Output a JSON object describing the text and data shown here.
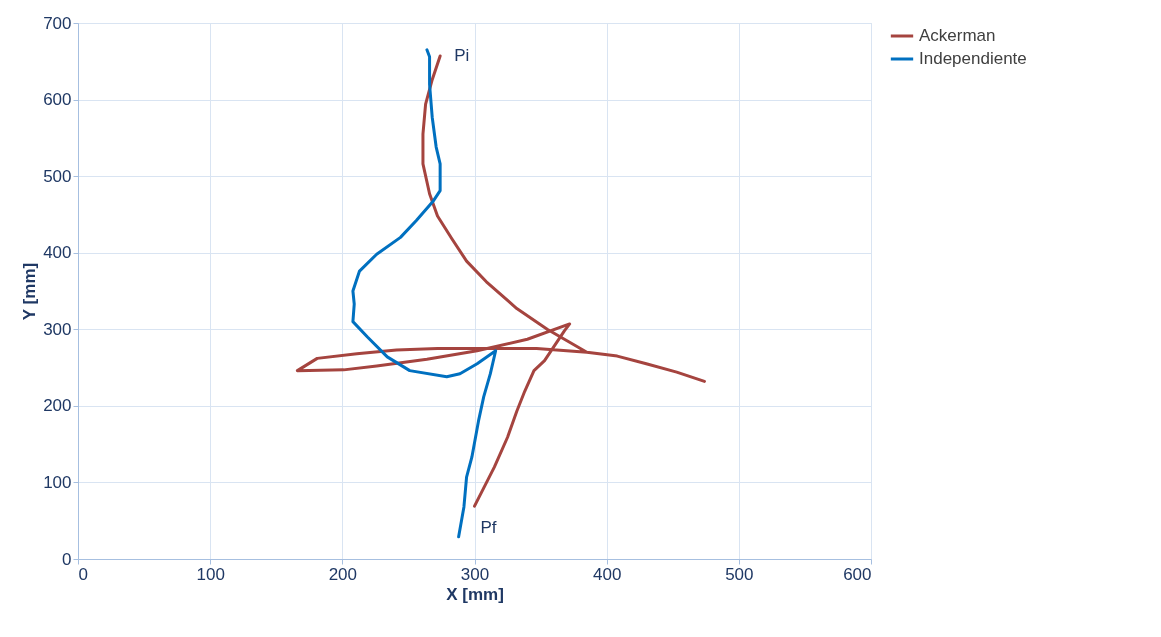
{
  "chart_data": {
    "type": "line",
    "xlabel": "X [mm]",
    "ylabel": "Y [mm]",
    "xlim": [
      0,
      600
    ],
    "ylim": [
      0,
      700
    ],
    "xticks": [
      0,
      100,
      200,
      300,
      400,
      500,
      600
    ],
    "yticks": [
      0,
      100,
      200,
      300,
      400,
      500,
      600,
      700
    ],
    "grid": true,
    "legend": "right",
    "marker": "none",
    "line_style": "solid",
    "series": [
      {
        "name": "Ackerman",
        "color": "#a5443f",
        "x": [
          274,
          268,
          263,
          261,
          261,
          266,
          272,
          283,
          294,
          309,
          332,
          355,
          370,
          385,
          408,
          430,
          453,
          474,
          453,
          430,
          408,
          385,
          347,
          317,
          272,
          241,
          211,
          181,
          166,
          201,
          226,
          264,
          302,
          340,
          372,
          368,
          353,
          345,
          338,
          332,
          325,
          315,
          300
        ],
        "values": [
          657,
          626,
          594,
          555,
          516,
          477,
          448,
          418,
          389,
          362,
          327,
          300,
          285,
          270,
          265,
          255,
          244,
          232,
          244,
          255,
          265,
          270,
          275,
          275,
          275,
          273,
          268,
          262,
          246,
          247,
          252,
          261,
          272,
          287,
          307,
          298,
          259,
          246,
          219,
          193,
          159,
          120,
          69
        ]
      },
      {
        "name": "Independiente",
        "color": "#0070c0",
        "x": [
          264,
          266,
          266,
          268,
          271,
          274,
          274,
          269,
          256,
          244,
          226,
          213,
          208,
          209,
          208,
          219,
          234,
          251,
          279,
          289,
          302,
          316,
          312,
          307,
          303,
          298,
          294,
          292,
          288
        ],
        "values": [
          665,
          656,
          620,
          577,
          538,
          516,
          481,
          468,
          442,
          420,
          398,
          376,
          350,
          333,
          310,
          290,
          264,
          246,
          238,
          242,
          255,
          272,
          242,
          212,
          180,
          133,
          107,
          68,
          29
        ]
      }
    ],
    "annotations": [
      "Pi",
      "Pf"
    ]
  }
}
